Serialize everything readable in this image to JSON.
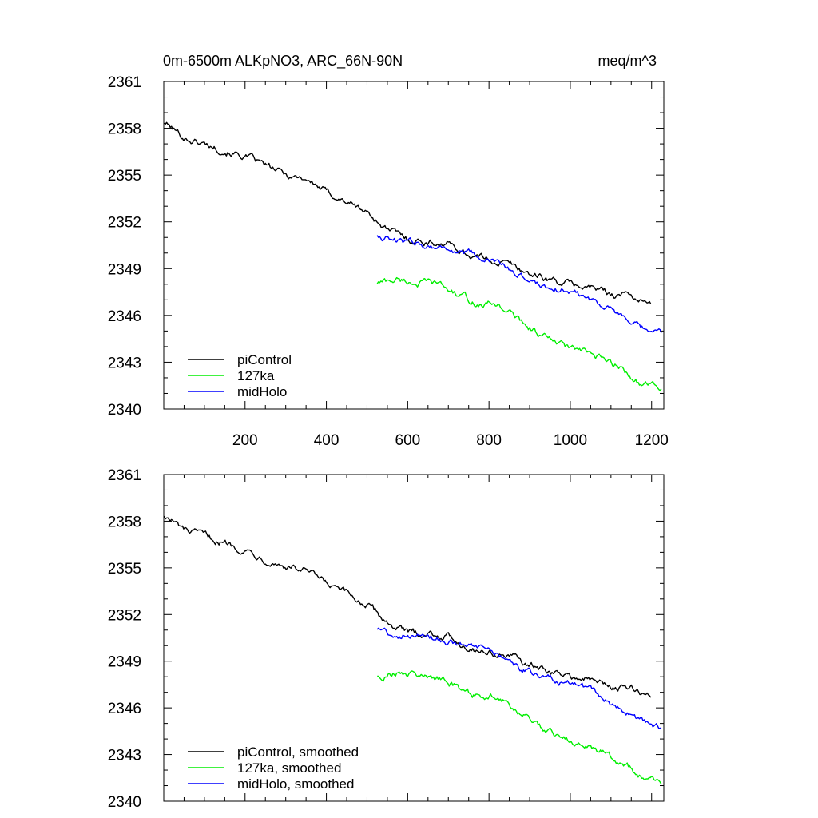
{
  "figure": {
    "title_left": "0m-6500m ALKpNO3, ARC_66N-90N",
    "title_right": "meq/m^3"
  },
  "chart_data": [
    {
      "type": "line",
      "panel": "top",
      "title": "0m-6500m ALKpNO3, ARC_66N-90N",
      "units": "meq/m^3",
      "xlim": [
        0,
        1230
      ],
      "ylim": [
        2340,
        2361
      ],
      "xticks": [
        200,
        400,
        600,
        800,
        1000,
        1200
      ],
      "yticks": [
        2340,
        2343,
        2346,
        2349,
        2352,
        2355,
        2358,
        2361
      ],
      "show_x_tick_labels": true,
      "legend_position": "bottom-left",
      "series": [
        {
          "name": "piControl",
          "color": "#000000",
          "x": [
            1,
            50,
            100,
            150,
            200,
            250,
            300,
            350,
            400,
            450,
            500,
            550,
            600,
            650,
            700,
            750,
            800,
            850,
            900,
            950,
            1000,
            1050,
            1100,
            1150,
            1200
          ],
          "values": [
            2358.4,
            2357.4,
            2357.0,
            2356.6,
            2356.2,
            2355.6,
            2355.0,
            2354.8,
            2353.9,
            2353.3,
            2352.6,
            2351.5,
            2350.9,
            2350.7,
            2350.6,
            2349.9,
            2349.6,
            2349.3,
            2348.7,
            2348.3,
            2348.0,
            2347.8,
            2347.4,
            2347.3,
            2346.6
          ]
        },
        {
          "name": "127ka",
          "color": "#00ee00",
          "x": [
            525,
            575,
            625,
            675,
            725,
            775,
            825,
            875,
            925,
            975,
            1025,
            1075,
            1125,
            1175,
            1225
          ],
          "values": [
            2348.1,
            2348.3,
            2348.1,
            2348.0,
            2347.3,
            2346.7,
            2346.7,
            2345.7,
            2344.8,
            2344.1,
            2343.7,
            2343.2,
            2342.6,
            2341.6,
            2341.3
          ]
        },
        {
          "name": "midHolo",
          "color": "#0000ff",
          "x": [
            525,
            575,
            625,
            675,
            725,
            775,
            825,
            875,
            925,
            975,
            1025,
            1075,
            1125,
            1175,
            1225
          ],
          "values": [
            2351.2,
            2350.7,
            2350.7,
            2350.4,
            2350.1,
            2349.7,
            2349.3,
            2348.6,
            2348.0,
            2347.7,
            2347.4,
            2346.8,
            2345.9,
            2345.1,
            2344.8
          ]
        }
      ]
    },
    {
      "type": "line",
      "panel": "bottom",
      "xlim": [
        0,
        1230
      ],
      "ylim": [
        2340,
        2361
      ],
      "xticks": [
        200,
        400,
        600,
        800,
        1000,
        1200
      ],
      "yticks": [
        2340,
        2343,
        2346,
        2349,
        2352,
        2355,
        2358,
        2361
      ],
      "show_x_tick_labels": false,
      "legend_position": "bottom-left",
      "series": [
        {
          "name": "piControl, smoothed",
          "color": "#000000",
          "x": [
            1,
            50,
            100,
            150,
            200,
            250,
            300,
            350,
            400,
            450,
            500,
            550,
            600,
            650,
            700,
            750,
            800,
            850,
            900,
            950,
            1000,
            1050,
            1100,
            1150,
            1200
          ],
          "values": [
            2358.4,
            2357.4,
            2357.0,
            2356.6,
            2356.2,
            2355.6,
            2355.1,
            2354.8,
            2353.9,
            2353.3,
            2352.6,
            2351.5,
            2350.8,
            2350.8,
            2350.6,
            2349.9,
            2349.6,
            2349.3,
            2348.7,
            2348.3,
            2348.0,
            2347.8,
            2347.4,
            2347.2,
            2346.7
          ]
        },
        {
          "name": "127ka, smoothed",
          "color": "#00ee00",
          "x": [
            525,
            575,
            625,
            675,
            725,
            775,
            825,
            875,
            925,
            975,
            1025,
            1075,
            1125,
            1175,
            1225
          ],
          "values": [
            2348.1,
            2348.3,
            2348.1,
            2348.0,
            2347.3,
            2346.7,
            2346.7,
            2345.7,
            2344.8,
            2344.1,
            2343.7,
            2343.2,
            2342.6,
            2341.6,
            2341.3
          ]
        },
        {
          "name": "midHolo, smoothed",
          "color": "#0000ff",
          "x": [
            525,
            575,
            625,
            675,
            725,
            775,
            825,
            875,
            925,
            975,
            1025,
            1075,
            1125,
            1175,
            1225
          ],
          "values": [
            2351.1,
            2350.7,
            2350.7,
            2350.4,
            2350.1,
            2349.7,
            2349.3,
            2348.6,
            2348.0,
            2347.7,
            2347.4,
            2346.8,
            2345.9,
            2345.1,
            2344.8
          ]
        }
      ]
    }
  ]
}
